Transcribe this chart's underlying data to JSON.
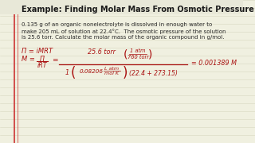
{
  "title": "Example: Finding Molar Mass From Osmotic Pressure",
  "body_line1": "0.135 g of an organic nonelectrolyte is dissolved in enough water to",
  "body_line2": "make 205 mL of solution at 22.4°C.  The osmotic pressure of the solution",
  "body_line3": "is 25.6 torr. Calculate the molar mass of the organic compound in g/mol.",
  "bg_color": "#f0f0e0",
  "title_color": "#1a1a1a",
  "body_color": "#2a2a2a",
  "formula_color": "#aa1111",
  "line_color": "#d8d8c0",
  "margin_line1": "#cc3333",
  "margin_line2": "#cc3333"
}
